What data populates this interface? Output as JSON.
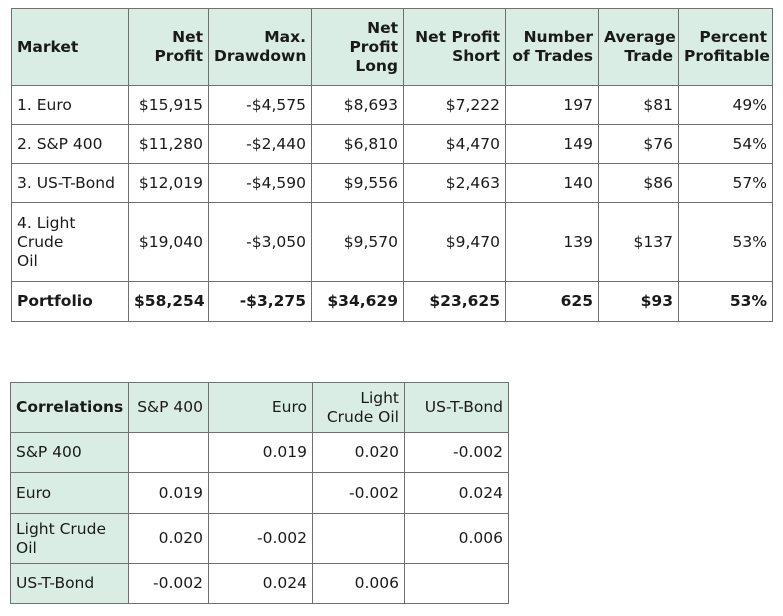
{
  "performance": {
    "headers": [
      [
        "Market"
      ],
      [
        "Net",
        "Profit"
      ],
      [
        "Max.",
        "Drawdown"
      ],
      [
        "Net Profit",
        "Long"
      ],
      [
        "Net Profit",
        "Short"
      ],
      [
        "Number",
        "of Trades"
      ],
      [
        "Average",
        "Trade"
      ],
      [
        "Percent",
        "Profitable"
      ]
    ],
    "rows": [
      {
        "market": "1. Euro",
        "net_profit": "$15,915",
        "max_drawdown": "-$4,575",
        "np_long": "$8,693",
        "np_short": "$7,222",
        "trades": "197",
        "avg_trade": "$81",
        "pct_profitable": "49%"
      },
      {
        "market": "2. S&P 400",
        "net_profit": "$11,280",
        "max_drawdown": "-$2,440",
        "np_long": "$6,810",
        "np_short": "$4,470",
        "trades": "149",
        "avg_trade": "$76",
        "pct_profitable": "54%"
      },
      {
        "market": "3. US-T-Bond",
        "net_profit": "$12,019",
        "max_drawdown": "-$4,590",
        "np_long": "$9,556",
        "np_short": "$2,463",
        "trades": "140",
        "avg_trade": "$86",
        "pct_profitable": "57%"
      },
      {
        "market_line1": "4. Light Crude",
        "market_line2": "Oil",
        "net_profit": "$19,040",
        "max_drawdown": "-$3,050",
        "np_long": "$9,570",
        "np_short": "$9,470",
        "trades": "139",
        "avg_trade": "$137",
        "pct_profitable": "53%"
      }
    ],
    "total": {
      "market": "Portfolio",
      "net_profit": "$58,254",
      "max_drawdown": "-$3,275",
      "np_long": "$34,629",
      "np_short": "$23,625",
      "trades": "625",
      "avg_trade": "$93",
      "pct_profitable": "53%"
    }
  },
  "correlations": {
    "corner": "Correlations",
    "col_headers": [
      [
        "S&P 400"
      ],
      [
        "Euro"
      ],
      [
        "Light",
        "Crude Oil"
      ],
      [
        "US-T-Bond"
      ]
    ],
    "rows": [
      {
        "label": "S&P 400",
        "values": [
          "",
          "0.019",
          "0.020",
          "-0.002"
        ]
      },
      {
        "label": "Euro",
        "values": [
          "0.019",
          "",
          "-0.002",
          "0.024"
        ]
      },
      {
        "label_line1": "Light Crude",
        "label_line2": "Oil",
        "values": [
          "0.020",
          "-0.002",
          "",
          "0.006"
        ]
      },
      {
        "label": "US-T-Bond",
        "values": [
          "-0.002",
          "0.024",
          "0.006",
          ""
        ]
      }
    ]
  }
}
